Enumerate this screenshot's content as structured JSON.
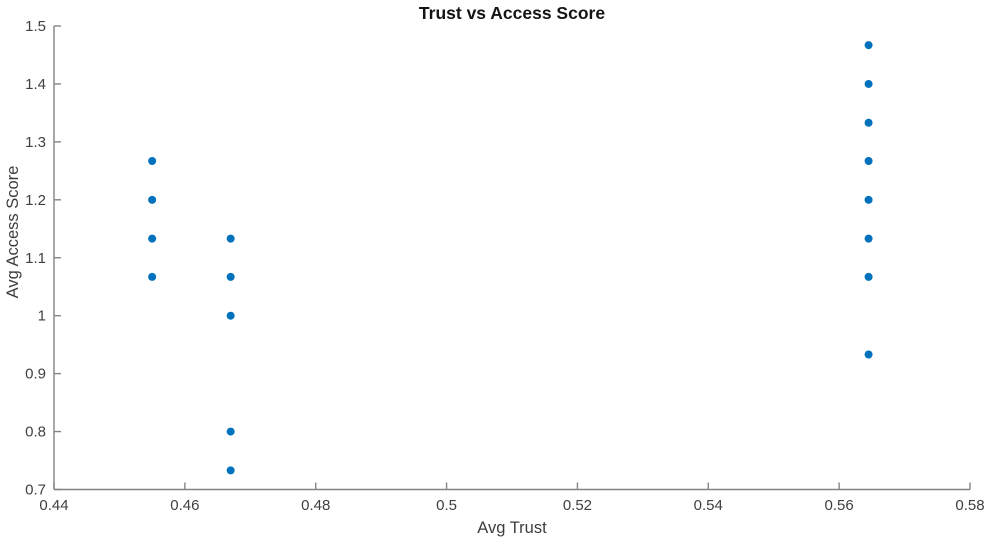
{
  "figure": {
    "background": "#ffffff",
    "axis_line_color": "#848484",
    "tick_label_color": "#3f3f3f",
    "title_color": "#141414"
  },
  "chart_data": {
    "type": "scatter",
    "title": "Trust vs Access Score",
    "xlabel": "Avg Trust",
    "ylabel": "Avg Access Score",
    "xlim": [
      0.44,
      0.58
    ],
    "ylim": [
      0.7,
      1.5
    ],
    "x_ticks": [
      0.44,
      0.46,
      0.48,
      0.5,
      0.52,
      0.54,
      0.56,
      0.58
    ],
    "x_tick_labels": [
      "0.44",
      "0.46",
      "0.48",
      "0.5",
      "0.52",
      "0.54",
      "0.56",
      "0.58"
    ],
    "y_ticks": [
      0.7,
      0.8,
      0.9,
      1,
      1.1,
      1.2,
      1.3,
      1.4,
      1.5
    ],
    "y_tick_labels": [
      "0.7",
      "0.8",
      "0.9",
      "1",
      "1.1",
      "1.2",
      "1.3",
      "1.4",
      "1.5"
    ],
    "grid": false,
    "legend": "none",
    "marker": {
      "shape": "filled-circle",
      "color": "#0072BD"
    },
    "points": [
      [
        0.455,
        1.267
      ],
      [
        0.455,
        1.2
      ],
      [
        0.455,
        1.133
      ],
      [
        0.455,
        1.067
      ],
      [
        0.467,
        1.133
      ],
      [
        0.467,
        1.067
      ],
      [
        0.467,
        1.0
      ],
      [
        0.467,
        0.8
      ],
      [
        0.467,
        0.733
      ],
      [
        0.5645,
        1.467
      ],
      [
        0.5645,
        1.4
      ],
      [
        0.5645,
        1.333
      ],
      [
        0.5645,
        1.267
      ],
      [
        0.5645,
        1.2
      ],
      [
        0.5645,
        1.133
      ],
      [
        0.5645,
        1.067
      ],
      [
        0.5645,
        0.933
      ]
    ]
  }
}
